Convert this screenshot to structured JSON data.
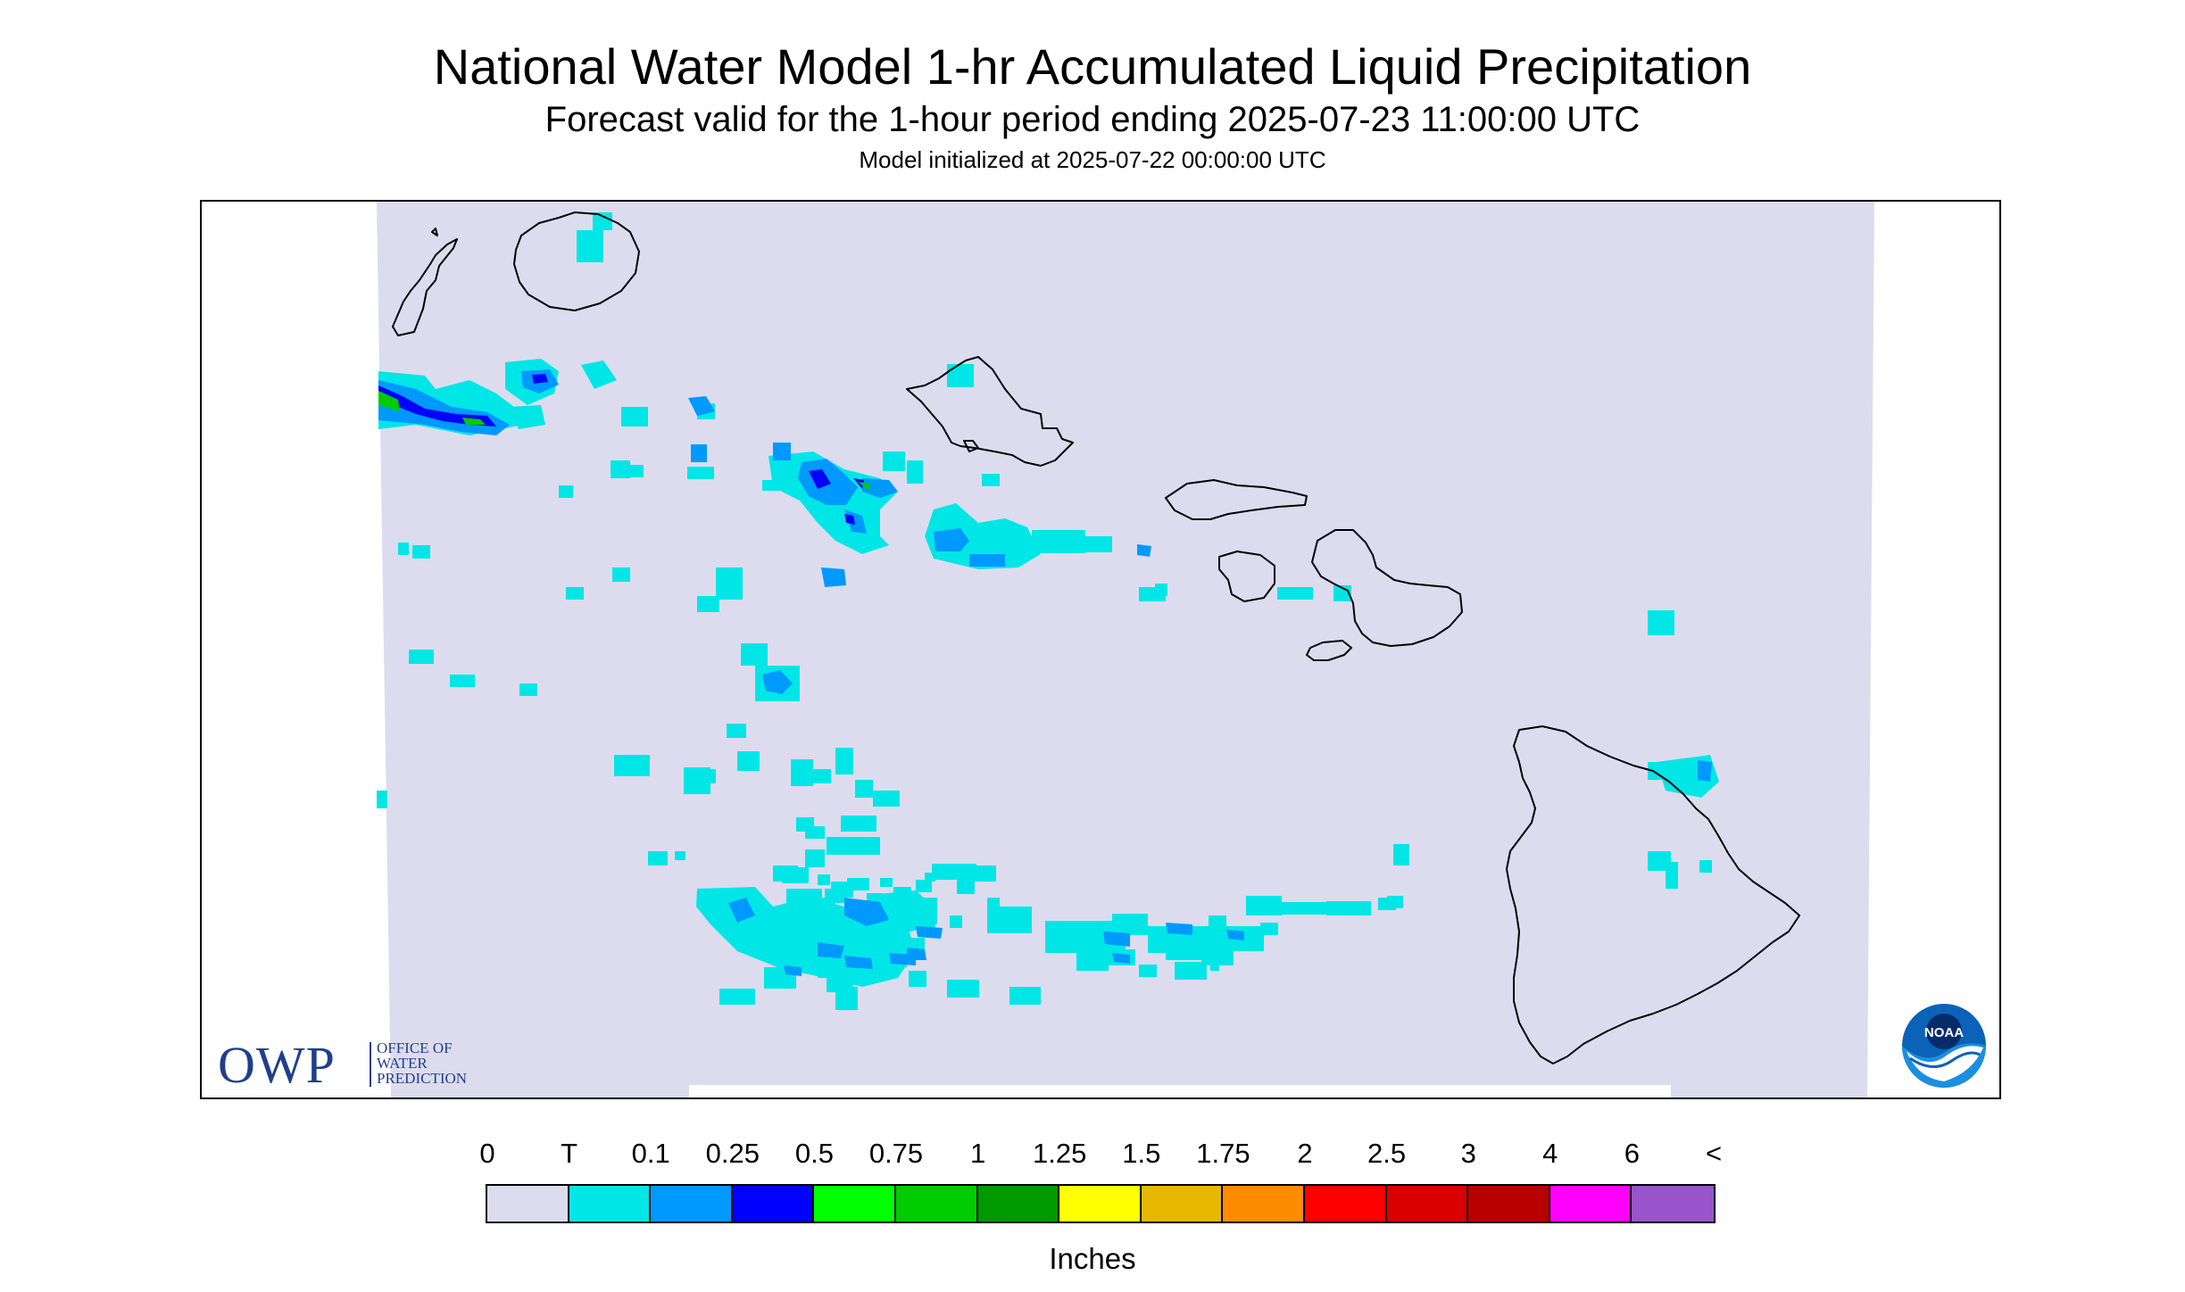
{
  "header": {
    "title": "National Water Model 1-hr Accumulated Liquid Precipitation",
    "subtitle": "Forecast valid for the 1-hour period ending 2025-07-23 11:00:00 UTC",
    "init_line": "Model initialized at 2025-07-22 00:00:00 UTC"
  },
  "map": {
    "background_color": "#dcdcee",
    "coastline_color": "#000000",
    "islands": [
      "Niihau",
      "Kauai",
      "Oahu",
      "Molokai",
      "Lanai",
      "Maui",
      "Kahoolawe",
      "Hawaii"
    ]
  },
  "logos": {
    "owp": {
      "letters": "OWP",
      "line1": "OFFICE OF",
      "line2": "WATER",
      "line3": "PREDICTION"
    },
    "noaa": {
      "text": "NOAA"
    }
  },
  "legend": {
    "labels": [
      "0",
      "T",
      "0.1",
      "0.25",
      "0.5",
      "0.75",
      "1",
      "1.25",
      "1.5",
      "1.75",
      "2",
      "2.5",
      "3",
      "4",
      "6",
      "<"
    ],
    "colors": [
      "#dcdcee",
      "#00e6e6",
      "#0099ff",
      "#0000ff",
      "#00ff00",
      "#00cc00",
      "#009900",
      "#ffff00",
      "#e6b800",
      "#ff8c00",
      "#ff0000",
      "#d90000",
      "#b80000",
      "#ff00ff",
      "#9955cc"
    ],
    "units": "Inches"
  }
}
